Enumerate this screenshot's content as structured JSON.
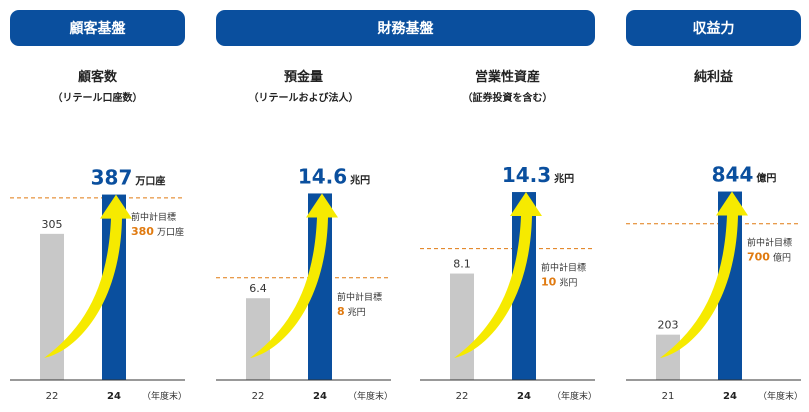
{
  "headers": {
    "customer_base": "顧客基盤",
    "financial_base": "財務基盤",
    "earning_power": "収益力"
  },
  "common": {
    "year_end_label": "（年度末）",
    "prev_target_label": "前中計目標"
  },
  "colors": {
    "header_bg": "#0a4f9e",
    "bar_result": "#0a4f9e",
    "bar_previous": "#c8c8c8",
    "target_line": "#e07a10",
    "target_text": "#e07a10",
    "arrow": "#f6ea00"
  },
  "chart_data": [
    {
      "type": "bar",
      "title": "顧客数",
      "subtitle": "（リテール口座数）",
      "categories": [
        "22",
        "24"
      ],
      "values": [
        305,
        387
      ],
      "value_labels": [
        "305",
        "387"
      ],
      "unit": "万口座",
      "target": 380,
      "target_value_label": "380",
      "target_unit": "万口座",
      "ylim": [
        0,
        480
      ]
    },
    {
      "type": "bar",
      "title": "預金量",
      "subtitle": "（リテールおよび法人）",
      "categories": [
        "22",
        "24"
      ],
      "values": [
        6.4,
        14.6
      ],
      "value_labels": [
        "6.4",
        "14.6"
      ],
      "unit": "兆円",
      "target": 8,
      "target_value_label": "8",
      "target_unit": "兆円",
      "ylim": [
        0,
        18
      ]
    },
    {
      "type": "bar",
      "title": "営業性資産",
      "subtitle": "（証券投資を含む）",
      "categories": [
        "22",
        "24"
      ],
      "values": [
        8.1,
        14.3
      ],
      "value_labels": [
        "8.1",
        "14.3"
      ],
      "unit": "兆円",
      "target": 10,
      "target_value_label": "10",
      "target_unit": "兆円",
      "ylim": [
        0,
        17.5
      ]
    },
    {
      "type": "bar",
      "title": "純利益",
      "subtitle": "",
      "categories": [
        "21",
        "24"
      ],
      "values": [
        203,
        844
      ],
      "value_labels": [
        "203",
        "844"
      ],
      "unit": "億円",
      "target": 700,
      "target_value_label": "700",
      "target_unit": "億円",
      "ylim": [
        0,
        1030
      ]
    }
  ]
}
